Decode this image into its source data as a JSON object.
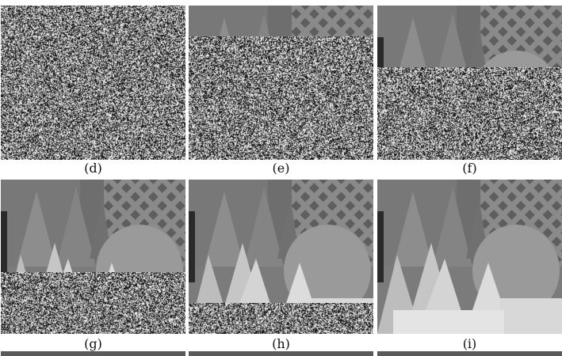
{
  "figure": {
    "panels": [
      {
        "id": "d",
        "caption": "(d)",
        "completed_fraction": 0.0
      },
      {
        "id": "e",
        "caption": "(e)",
        "completed_fraction": 0.2
      },
      {
        "id": "f",
        "caption": "(f)",
        "completed_fraction": 0.4
      },
      {
        "id": "g",
        "caption": "(g)",
        "completed_fraction": 0.6
      },
      {
        "id": "h",
        "caption": "(h)",
        "completed_fraction": 0.8
      },
      {
        "id": "i",
        "caption": "(i)",
        "completed_fraction": 1.0
      }
    ]
  }
}
